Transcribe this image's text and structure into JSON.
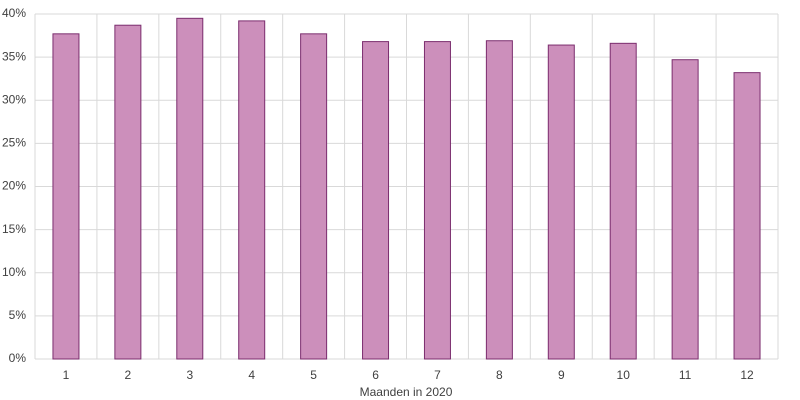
{
  "chart_data": {
    "type": "bar",
    "x_label": "Maanden in 2020",
    "categories": [
      "1",
      "2",
      "3",
      "4",
      "5",
      "6",
      "7",
      "8",
      "9",
      "10",
      "11",
      "12"
    ],
    "values": [
      37.7,
      38.7,
      39.5,
      39.2,
      37.7,
      36.8,
      36.8,
      36.9,
      36.4,
      36.6,
      34.7,
      33.2
    ],
    "color": "#cc8fbb",
    "edge_color": "#7b2d6e",
    "ylim": [
      0,
      40
    ],
    "yticks": [
      {
        "value": 0,
        "label": "0%"
      },
      {
        "value": 5,
        "label": "5%"
      },
      {
        "value": 10,
        "label": "10%"
      },
      {
        "value": 15,
        "label": "15%"
      },
      {
        "value": 20,
        "label": "20%"
      },
      {
        "value": 25,
        "label": "25%"
      },
      {
        "value": 30,
        "label": "30%"
      },
      {
        "value": 35,
        "label": "35%"
      },
      {
        "value": 40,
        "label": "40%"
      }
    ],
    "grid": true
  }
}
